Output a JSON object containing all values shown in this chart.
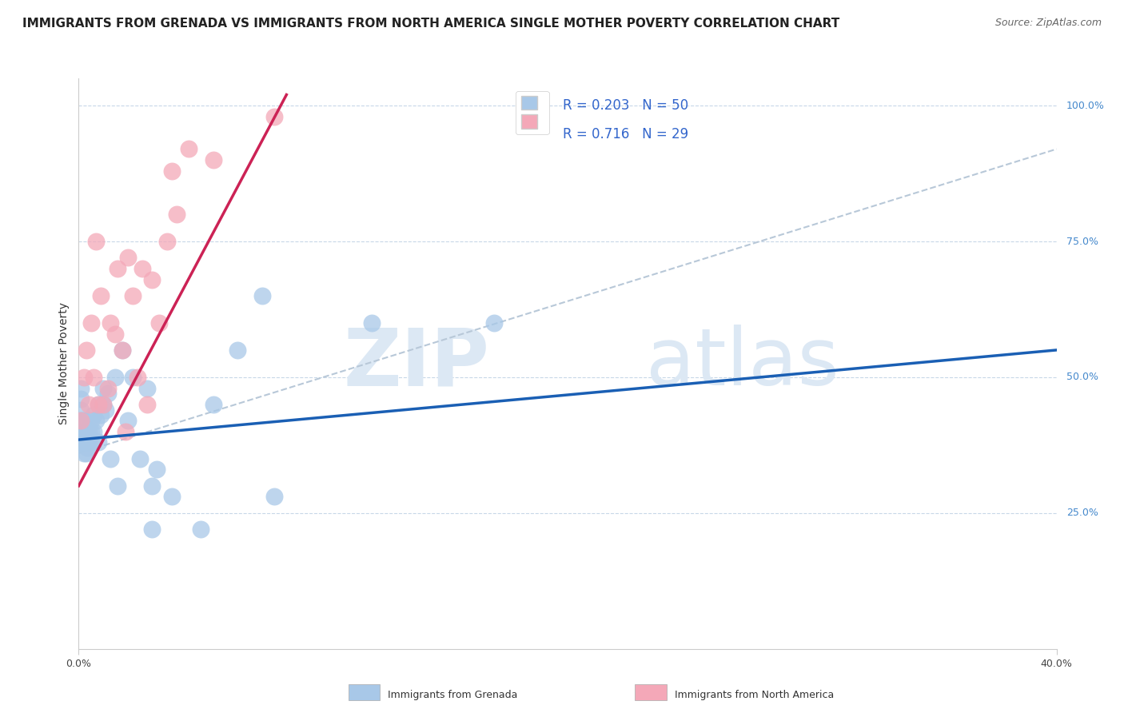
{
  "title": "IMMIGRANTS FROM GRENADA VS IMMIGRANTS FROM NORTH AMERICA SINGLE MOTHER POVERTY CORRELATION CHART",
  "source": "Source: ZipAtlas.com",
  "ylabel": "Single Mother Poverty",
  "xlim": [
    0.0,
    0.4
  ],
  "ylim": [
    0.0,
    1.05
  ],
  "color_blue": "#a8c8e8",
  "color_pink": "#f4a8b8",
  "line_blue": "#1a5fb4",
  "line_pink": "#cc2255",
  "line_dashed": "#b8c8d8",
  "watermark_zip": "ZIP",
  "watermark_atlas": "atlas",
  "watermark_color": "#dce8f4",
  "background": "#ffffff",
  "grid_color": "#c8d8e8",
  "bottom_legend1": "Immigrants from Grenada",
  "bottom_legend2": "Immigrants from North America",
  "legend_r1": "R = 0.203",
  "legend_n1": "N = 50",
  "legend_r2": "R = 0.716",
  "legend_n2": "N = 29",
  "title_fontsize": 11,
  "source_fontsize": 9,
  "axis_fontsize": 9,
  "legend_fontsize": 12,
  "blue_x": [
    0.001,
    0.001,
    0.001,
    0.001,
    0.001,
    0.0015,
    0.0015,
    0.002,
    0.002,
    0.002,
    0.002,
    0.0025,
    0.003,
    0.003,
    0.003,
    0.0035,
    0.004,
    0.004,
    0.005,
    0.005,
    0.005,
    0.006,
    0.006,
    0.007,
    0.008,
    0.008,
    0.009,
    0.01,
    0.01,
    0.011,
    0.012,
    0.013,
    0.015,
    0.016,
    0.018,
    0.02,
    0.022,
    0.025,
    0.028,
    0.03,
    0.03,
    0.032,
    0.038,
    0.05,
    0.055,
    0.065,
    0.075,
    0.08,
    0.12,
    0.17
  ],
  "blue_y": [
    0.38,
    0.42,
    0.44,
    0.46,
    0.48,
    0.4,
    0.42,
    0.36,
    0.38,
    0.4,
    0.42,
    0.39,
    0.36,
    0.38,
    0.4,
    0.37,
    0.38,
    0.4,
    0.38,
    0.4,
    0.42,
    0.4,
    0.43,
    0.42,
    0.38,
    0.45,
    0.43,
    0.45,
    0.48,
    0.44,
    0.47,
    0.35,
    0.5,
    0.3,
    0.55,
    0.42,
    0.5,
    0.35,
    0.48,
    0.22,
    0.3,
    0.33,
    0.28,
    0.22,
    0.45,
    0.55,
    0.65,
    0.28,
    0.6,
    0.6
  ],
  "pink_x": [
    0.001,
    0.002,
    0.003,
    0.004,
    0.005,
    0.006,
    0.007,
    0.008,
    0.009,
    0.01,
    0.012,
    0.013,
    0.015,
    0.016,
    0.018,
    0.019,
    0.02,
    0.022,
    0.024,
    0.026,
    0.028,
    0.03,
    0.033,
    0.036,
    0.038,
    0.04,
    0.045,
    0.055,
    0.08
  ],
  "pink_y": [
    0.42,
    0.5,
    0.55,
    0.45,
    0.6,
    0.5,
    0.75,
    0.45,
    0.65,
    0.45,
    0.48,
    0.6,
    0.58,
    0.7,
    0.55,
    0.4,
    0.72,
    0.65,
    0.5,
    0.7,
    0.45,
    0.68,
    0.6,
    0.75,
    0.88,
    0.8,
    0.92,
    0.9,
    0.98
  ],
  "blue_line_x0": 0.0,
  "blue_line_x1": 0.4,
  "blue_line_y0": 0.385,
  "blue_line_y1": 0.55,
  "pink_line_x0": 0.0,
  "pink_line_x1": 0.085,
  "pink_line_y0": 0.3,
  "pink_line_y1": 1.02,
  "dash_line_x0": 0.0,
  "dash_line_x1": 0.4,
  "dash_line_y0": 0.36,
  "dash_line_y1": 0.92
}
